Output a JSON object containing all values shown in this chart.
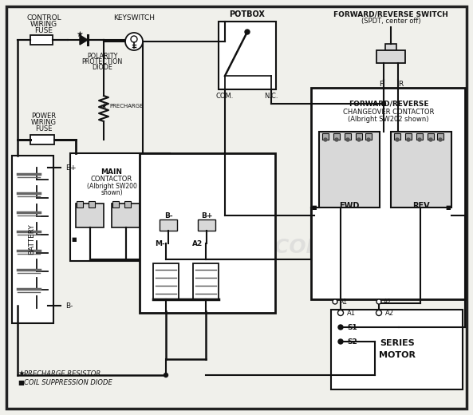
{
  "bg_color": "#f0f0eb",
  "border_color": "#222222",
  "line_color": "#111111",
  "text_color": "#111111",
  "watermark": "VVDRIVES.COM",
  "comp_fill": "#d8d8d8",
  "white": "#ffffff",
  "labels": {
    "control_fuse": "CONTROL\nWIRING\nFUSE",
    "keyswitch": "KEYSWITCH",
    "potbox": "POTBOX",
    "fr_switch": "FORWARD/REVERSE SWITCH\n(SPDT, center off)",
    "polarity": "POLARITY\nPROTECTION\nDIODE",
    "power_fuse": "POWER\nWIRING\nFUSE",
    "main_contactor": "MAIN\nCONTACTOR\n(Albright SW200\nshown)",
    "fr_contactor": "FORWARD/REVERSE\nCHANGEOVER CONTACTOR\n(Albright SW202 shown)",
    "battery": "BATTERY",
    "motor": "SERIES\nMOTOR",
    "fwd": "FWD",
    "rev": "REV",
    "bplus": "B+",
    "bminus": "B-",
    "mminus": "M-",
    "a2": "A2",
    "a1": "A1",
    "s1": "S1",
    "s2": "S2",
    "f": "F",
    "r": "R",
    "com": "COM.",
    "nc": "N.C.",
    "legend_star": "PRECHARGE RESISTOR",
    "legend_sq": "COIL SUPPRESSION DIODE"
  }
}
